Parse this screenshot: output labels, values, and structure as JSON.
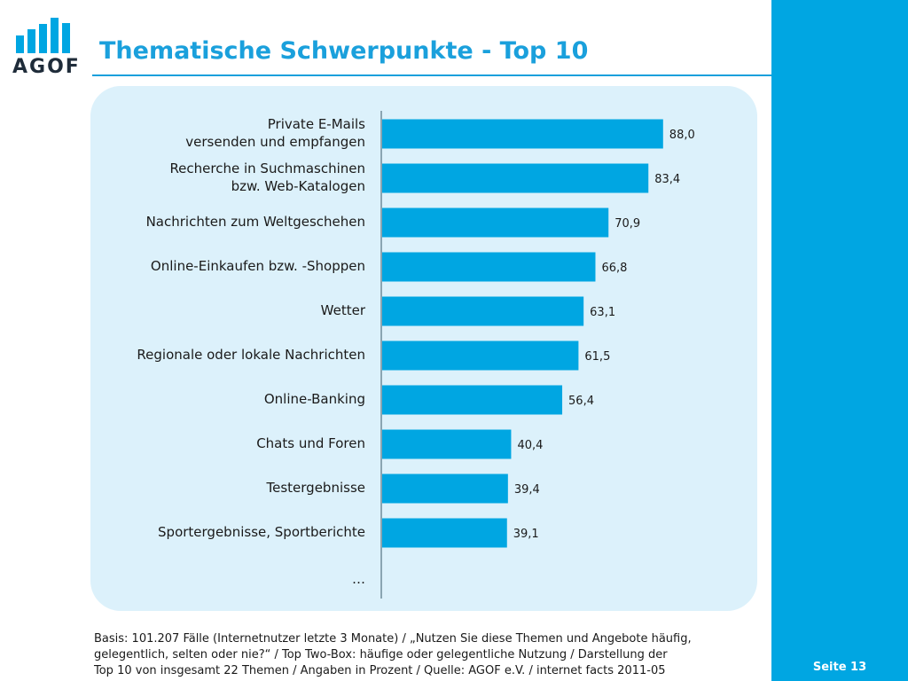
{
  "header": {
    "logo_text": "AGOF",
    "title": "Thematische Schwerpunkte - Top 10"
  },
  "colors": {
    "accent": "#00a6e2",
    "title": "#1aa0dc",
    "panel": "#dcf1fb",
    "bar": "#00a6e2",
    "logo_dark": "#1f2c3a"
  },
  "chart_data": {
    "type": "bar",
    "orientation": "horizontal",
    "categories": [
      "Private E-Mails\nversenden und empfangen",
      "Recherche in Suchmaschinen\nbzw. Web-Katalogen",
      "Nachrichten zum Weltgeschehen",
      "Online-Einkaufen bzw. -Shoppen",
      "Wetter",
      "Regionale oder lokale Nachrichten",
      "Online-Banking",
      "Chats und Foren",
      "Testergebnisse",
      "Sportergebnisse, Sportberichte"
    ],
    "values": [
      88.0,
      83.4,
      70.9,
      66.8,
      63.1,
      61.5,
      56.4,
      40.4,
      39.4,
      39.1
    ],
    "value_labels": [
      "88,0",
      "83,4",
      "70,9",
      "66,8",
      "63,1",
      "61,5",
      "56,4",
      "40,4",
      "39,4",
      "39,1"
    ],
    "trailing_label": "…",
    "xlim": [
      0,
      100
    ],
    "grid": false,
    "legend": "none"
  },
  "footer": {
    "note_lines": [
      "Basis: 101.207 Fälle (Internetnutzer letzte 3 Monate) / „Nutzen Sie diese Themen und Angebote häufig,",
      "gelegentlich, selten oder nie?“ / Top Two-Box: häufige oder gelegentliche Nutzung / Darstellung der",
      "Top 10 von insgesamt 22 Themen / Angaben in Prozent / Quelle: AGOF e.V. / internet facts 2011-05"
    ],
    "page_label": "Seite 13"
  }
}
